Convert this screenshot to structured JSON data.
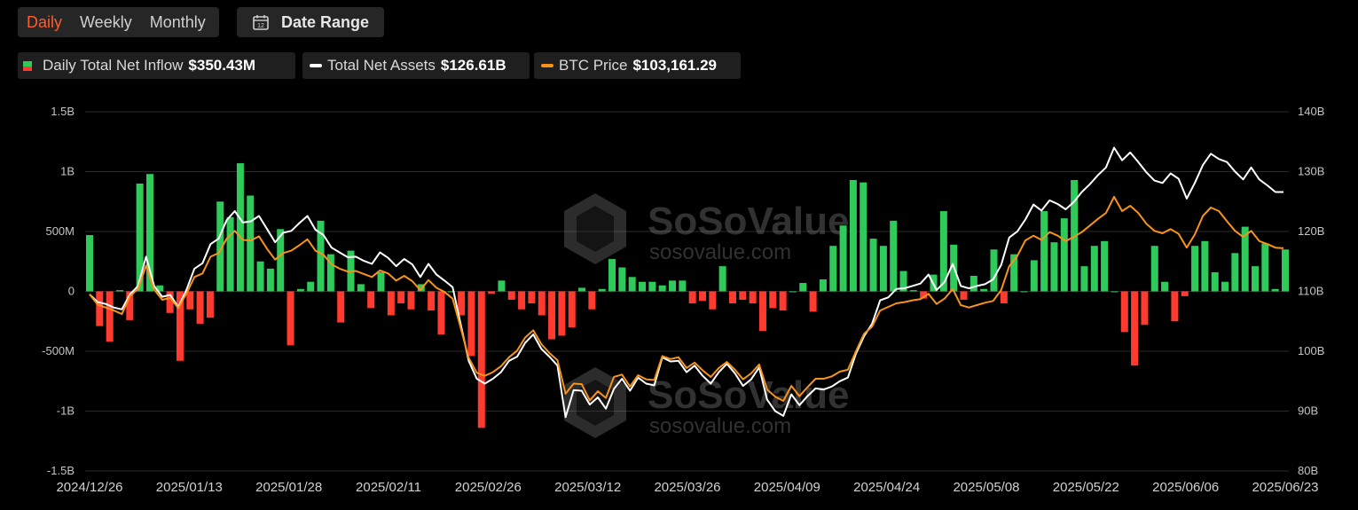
{
  "tabs": {
    "daily": "Daily",
    "weekly": "Weekly",
    "monthly": "Monthly",
    "active": "Daily"
  },
  "date_range_label": "Date Range",
  "calendar_day": "12",
  "legend": {
    "inflow": {
      "name": "Daily Total Net Inflow",
      "value": "$350.43M"
    },
    "assets": {
      "name": "Total Net Assets",
      "value": "$126.61B"
    },
    "btc": {
      "name": "BTC Price",
      "value": "$103,161.29"
    }
  },
  "watermark": {
    "brand": "SoSoValue",
    "url": "sosovalue.com"
  },
  "colors": {
    "positive": "#2fcb5a",
    "negative": "#ff3b30",
    "assets_line": "#ffffff",
    "btc_line": "#f7931a",
    "grid": "#2a2a2a",
    "accent": "#ff5b2e"
  },
  "chart_data": {
    "type": "bar+line",
    "x_ticks": [
      "2024/12/26",
      "2025/01/13",
      "2025/01/28",
      "2025/02/11",
      "2025/02/26",
      "2025/03/12",
      "2025/03/26",
      "2025/04/09",
      "2025/04/24",
      "2025/05/08",
      "2025/05/22",
      "2025/06/06",
      "2025/06/23"
    ],
    "y_left": {
      "ticks": [
        "1.5B",
        "1B",
        "500M",
        "0",
        "-500M",
        "-1B",
        "-1.5B"
      ],
      "range": [
        -1.5,
        1.5
      ],
      "unit": "B USD"
    },
    "y_right": {
      "ticks": [
        "140B",
        "130B",
        "120B",
        "110B",
        "100B",
        "90B",
        "80B"
      ],
      "range": [
        80,
        140
      ],
      "unit": "B"
    },
    "series": [
      {
        "name": "Daily Total Net Inflow",
        "kind": "bar",
        "unit": "B USD",
        "values": [
          0.47,
          -0.29,
          -0.42,
          0.01,
          -0.24,
          0.9,
          0.98,
          0.05,
          -0.18,
          -0.58,
          -0.15,
          -0.27,
          -0.22,
          0.75,
          0.62,
          1.07,
          0.8,
          0.25,
          0.19,
          0.52,
          -0.45,
          0.02,
          0.08,
          0.59,
          0.31,
          -0.26,
          0.34,
          0.06,
          -0.14,
          0.16,
          -0.2,
          -0.1,
          -0.15,
          0.06,
          -0.16,
          -0.36,
          0.0,
          -0.2,
          -0.54,
          -1.14,
          -0.02,
          0.09,
          -0.07,
          -0.15,
          -0.1,
          -0.2,
          -0.4,
          -0.37,
          -0.3,
          0.03,
          -0.15,
          0.02,
          0.27,
          0.2,
          0.12,
          0.08,
          0.08,
          0.05,
          0.09,
          0.09,
          -0.1,
          -0.08,
          -0.15,
          0.21,
          -0.1,
          -0.07,
          -0.1,
          -0.33,
          -0.14,
          -0.16,
          0.0,
          0.07,
          -0.17,
          0.1,
          0.38,
          0.55,
          0.93,
          0.91,
          0.44,
          0.38,
          0.59,
          0.17,
          0.01,
          -0.06,
          0.14,
          0.67,
          0.39,
          -0.07,
          0.13,
          0.02,
          0.35,
          -0.1,
          0.31,
          0.0,
          0.26,
          0.67,
          0.41,
          0.61,
          0.93,
          0.21,
          0.38,
          0.42,
          0.0,
          -0.34,
          -0.62,
          -0.28,
          0.38,
          0.08,
          -0.25,
          -0.04,
          0.38,
          0.42,
          0.16,
          0.08,
          0.32,
          0.54,
          0.21,
          0.4,
          0.02,
          0.35
        ]
      },
      {
        "name": "Total Net Assets",
        "kind": "line",
        "axis": "right",
        "unit": "B",
        "values": [
          109.5,
          108.2,
          107.9,
          107.3,
          107.0,
          109.5,
          110.9,
          115.8,
          110.9,
          109.1,
          109.4,
          107.4,
          110.2,
          113.8,
          114.7,
          117.9,
          118.8,
          121.9,
          123.4,
          121.5,
          121.7,
          122.6,
          120.4,
          118.2,
          119.8,
          120.1,
          121.4,
          122.6,
          120.3,
          119.4,
          117.3,
          116.5,
          115.7,
          115.8,
          115.1,
          114.6,
          116.5,
          115.6,
          114.2,
          115.4,
          114.5,
          112.4,
          114.6,
          112.8,
          111.8,
          110.7,
          104.5,
          98.4,
          95.4,
          94.6,
          95.4,
          96.5,
          98.4,
          99.1,
          101.4,
          102.8,
          100.4,
          99.1,
          97.6,
          89.0,
          93.5,
          93.4,
          91.1,
          92.3,
          90.4,
          93.7,
          95.4,
          93.4,
          95.6,
          94.6,
          94.3,
          99.0,
          98.3,
          98.4,
          96.5,
          97.6,
          95.9,
          94.6,
          96.5,
          97.9,
          96.3,
          94.2,
          95.3,
          97.3,
          91.9,
          90.0,
          89.2,
          92.8,
          91.0,
          92.5,
          93.8,
          93.6,
          94.1,
          95.0,
          95.6,
          99.6,
          102.5,
          104.6,
          108.5,
          109.0,
          110.4,
          110.5,
          110.9,
          111.3,
          112.8,
          110.2,
          111.6,
          114.6,
          110.9,
          110.5,
          110.9,
          111.2,
          112.0,
          114.4,
          119.0,
          120.0,
          122.0,
          124.5,
          123.5,
          125.2,
          124.6,
          123.7,
          124.9,
          126.6,
          127.9,
          129.4,
          130.7,
          134.0,
          131.9,
          133.2,
          131.6,
          129.9,
          128.5,
          128.1,
          129.7,
          128.8,
          125.5,
          128.1,
          131.1,
          133.0,
          132.1,
          131.6,
          130.0,
          128.7,
          130.7,
          128.7,
          127.7,
          126.6,
          126.6
        ]
      },
      {
        "name": "BTC Price",
        "kind": "line",
        "axis": "right",
        "unit": "B",
        "values": [
          109.5,
          107.8,
          107.3,
          106.8,
          106.2,
          109.2,
          110.4,
          114.3,
          110.3,
          108.6,
          108.9,
          107.2,
          109.6,
          112.4,
          113.0,
          115.8,
          116.4,
          118.8,
          120.1,
          118.6,
          118.5,
          119.2,
          117.1,
          115.3,
          116.4,
          116.8,
          117.7,
          118.7,
          116.8,
          116.1,
          114.5,
          113.8,
          113.3,
          113.4,
          112.9,
          112.4,
          113.5,
          113.0,
          111.8,
          112.6,
          111.7,
          110.2,
          111.9,
          110.6,
          109.9,
          108.8,
          103.9,
          98.9,
          96.4,
          95.9,
          96.5,
          97.5,
          99.0,
          100.1,
          102.3,
          103.5,
          101.2,
          99.7,
          98.5,
          92.9,
          94.6,
          94.5,
          91.8,
          93.3,
          92.2,
          95.7,
          96.1,
          94.1,
          96.0,
          95.3,
          95.2,
          99.2,
          98.7,
          99.0,
          97.2,
          98.1,
          96.8,
          95.7,
          97.2,
          98.2,
          96.9,
          95.3,
          96.3,
          97.8,
          93.6,
          92.4,
          91.7,
          94.2,
          92.5,
          94.0,
          95.4,
          95.4,
          95.8,
          96.6,
          96.9,
          100.0,
          102.9,
          104.1,
          106.8,
          107.4,
          108.0,
          108.2,
          108.5,
          108.7,
          109.6,
          107.9,
          108.8,
          110.4,
          107.7,
          107.3,
          107.7,
          108.1,
          108.4,
          110.2,
          114.2,
          115.9,
          118.5,
          119.3,
          118.6,
          119.9,
          119.3,
          118.4,
          119.1,
          119.9,
          121.0,
          122.1,
          123.1,
          125.8,
          123.4,
          124.3,
          123.1,
          121.3,
          120.1,
          119.7,
          120.4,
          119.6,
          117.3,
          119.5,
          122.6,
          124.0,
          123.4,
          121.7,
          120.1,
          119.1,
          120.1,
          118.4,
          117.9,
          117.3,
          117.2
        ]
      }
    ]
  }
}
